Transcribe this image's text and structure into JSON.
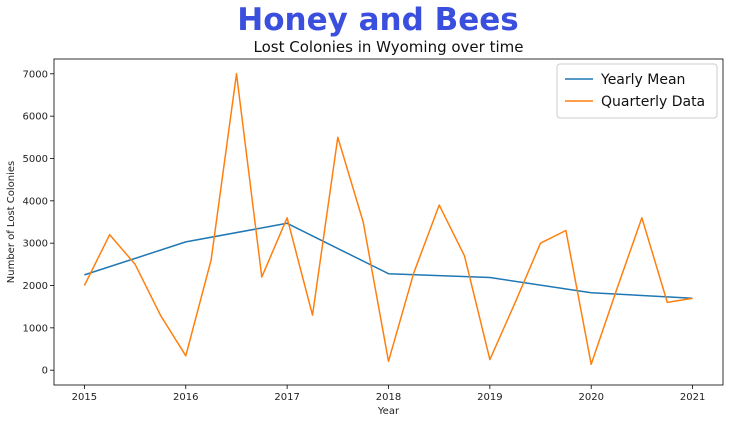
{
  "suptitle": "Honey and Bees",
  "chart_data": {
    "type": "line",
    "title": "Lost Colonies in Wyoming over time",
    "xlabel": "Year",
    "ylabel": "Number of Lost Colonies",
    "xlim": [
      2015,
      2021
    ],
    "ylim": [
      0,
      7000
    ],
    "x_ticks": [
      2015,
      2016,
      2017,
      2018,
      2019,
      2020,
      2021
    ],
    "y_ticks": [
      0,
      1000,
      2000,
      3000,
      4000,
      5000,
      6000,
      7000
    ],
    "grid": false,
    "legend_position": "top-right",
    "series": [
      {
        "name": "Yearly Mean",
        "color": "#1f77b4",
        "x": [
          2015,
          2016,
          2017,
          2018,
          2019,
          2020,
          2021
        ],
        "y": [
          2250,
          3030,
          3470,
          2280,
          2190,
          1830,
          1700
        ]
      },
      {
        "name": "Quarterly Data",
        "color": "#ff7f0e",
        "x": [
          2015.0,
          2015.25,
          2015.5,
          2015.75,
          2016.0,
          2016.25,
          2016.5,
          2016.75,
          2017.0,
          2017.25,
          2017.5,
          2017.75,
          2018.0,
          2018.25,
          2018.5,
          2018.75,
          2019.0,
          2019.25,
          2019.5,
          2019.75,
          2020.0,
          2020.25,
          2020.5,
          2020.75,
          2021.0
        ],
        "y": [
          2000,
          3200,
          2500,
          1300,
          340,
          2600,
          7000,
          2200,
          3600,
          1300,
          5500,
          3500,
          210,
          2300,
          3900,
          2700,
          250,
          1600,
          3000,
          3300,
          140,
          1900,
          3600,
          1600,
          1700
        ]
      }
    ]
  }
}
